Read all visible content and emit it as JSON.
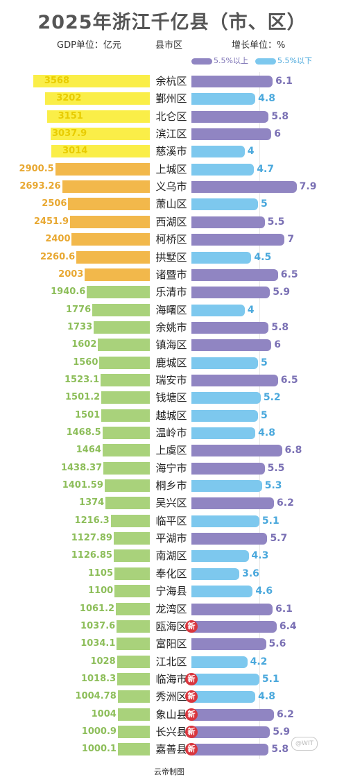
{
  "header": {
    "title": "2025年浙江千亿县（市、区）",
    "gdp_unit": "GDP单位：亿元",
    "region_label": "县市区",
    "growth_unit": "增长单位：%"
  },
  "legend": {
    "above": "5.5%以上",
    "below": "5.5%以下"
  },
  "colors": {
    "gdp_yellow": "#FAEE48",
    "gdp_orange": "#F2B84B",
    "gdp_green": "#A9D27B",
    "growth_above": "#9085C2",
    "growth_below": "#7DC8EE",
    "gdp_text_yellow": "#E8CC00",
    "gdp_text_orange": "#E8A832",
    "gdp_text_green": "#8DBE5A"
  },
  "badge_text": "新",
  "credit": "云帝制图",
  "watermark": "@WIT",
  "chart_data": {
    "type": "bar",
    "title": "2025年浙江千亿县（市、区）",
    "xlabel": "县市区",
    "gdp_unit": "亿元",
    "growth_unit": "%",
    "series": [
      {
        "name": "GDP",
        "values": [
          3568,
          3202,
          3151,
          3037.9,
          3014,
          2900.5,
          2693.26,
          2506,
          2451.9,
          2400,
          2260.6,
          2003,
          1940.6,
          1776,
          1733,
          1602,
          1560,
          1523.1,
          1501.2,
          1501,
          1468.5,
          1464,
          1438.37,
          1401.59,
          1374,
          1216.3,
          1127.89,
          1126.85,
          1105,
          1100,
          1061.2,
          1037.6,
          1034.1,
          1028,
          1018.3,
          1004.78,
          1004,
          1000.9,
          1000.1
        ]
      },
      {
        "name": "增长",
        "values": [
          6.1,
          4.8,
          5.8,
          6,
          4,
          4.7,
          7.9,
          5,
          5.5,
          7,
          4.5,
          6.5,
          5.9,
          4,
          5.8,
          6,
          5,
          6.5,
          5.2,
          5,
          4.8,
          6.8,
          5.5,
          5.3,
          6.2,
          5.1,
          5.7,
          4.3,
          3.6,
          4.6,
          6.1,
          6.4,
          5.6,
          4.2,
          5.1,
          4.8,
          6.2,
          5.9,
          5.8
        ]
      }
    ],
    "rows": [
      {
        "name": "余杭区",
        "gdp": "3568",
        "growth": "6.1",
        "tier": "yellow",
        "above": true,
        "new": false
      },
      {
        "name": "鄞州区",
        "gdp": "3202",
        "growth": "4.8",
        "tier": "yellow",
        "above": false,
        "new": false
      },
      {
        "name": "北仑区",
        "gdp": "3151",
        "growth": "5.8",
        "tier": "yellow",
        "above": true,
        "new": false
      },
      {
        "name": "滨江区",
        "gdp": "3037.9",
        "growth": "6",
        "tier": "yellow",
        "above": true,
        "new": false
      },
      {
        "name": "慈溪市",
        "gdp": "3014",
        "growth": "4",
        "tier": "yellow",
        "above": false,
        "new": false
      },
      {
        "name": "上城区",
        "gdp": "2900.5",
        "growth": "4.7",
        "tier": "orange",
        "above": false,
        "new": false
      },
      {
        "name": "义乌市",
        "gdp": "2693.26",
        "growth": "7.9",
        "tier": "orange",
        "above": true,
        "new": false
      },
      {
        "name": "萧山区",
        "gdp": "2506",
        "growth": "5",
        "tier": "orange",
        "above": false,
        "new": false
      },
      {
        "name": "西湖区",
        "gdp": "2451.9",
        "growth": "5.5",
        "tier": "orange",
        "above": true,
        "new": false
      },
      {
        "name": "柯桥区",
        "gdp": "2400",
        "growth": "7",
        "tier": "orange",
        "above": true,
        "new": false
      },
      {
        "name": "拱墅区",
        "gdp": "2260.6",
        "growth": "4.5",
        "tier": "orange",
        "above": false,
        "new": false
      },
      {
        "name": "诸暨市",
        "gdp": "2003",
        "growth": "6.5",
        "tier": "orange",
        "above": true,
        "new": false
      },
      {
        "name": "乐清市",
        "gdp": "1940.6",
        "growth": "5.9",
        "tier": "green",
        "above": true,
        "new": false
      },
      {
        "name": "海曙区",
        "gdp": "1776",
        "growth": "4",
        "tier": "green",
        "above": false,
        "new": false
      },
      {
        "name": "余姚市",
        "gdp": "1733",
        "growth": "5.8",
        "tier": "green",
        "above": true,
        "new": false
      },
      {
        "name": "镇海区",
        "gdp": "1602",
        "growth": "6",
        "tier": "green",
        "above": true,
        "new": false
      },
      {
        "name": "鹿城区",
        "gdp": "1560",
        "growth": "5",
        "tier": "green",
        "above": false,
        "new": false
      },
      {
        "name": "瑞安市",
        "gdp": "1523.1",
        "growth": "6.5",
        "tier": "green",
        "above": true,
        "new": false
      },
      {
        "name": "钱塘区",
        "gdp": "1501.2",
        "growth": "5.2",
        "tier": "green",
        "above": false,
        "new": false
      },
      {
        "name": "越城区",
        "gdp": "1501",
        "growth": "5",
        "tier": "green",
        "above": false,
        "new": false
      },
      {
        "name": "温岭市",
        "gdp": "1468.5",
        "growth": "4.8",
        "tier": "green",
        "above": false,
        "new": false
      },
      {
        "name": "上虞区",
        "gdp": "1464",
        "growth": "6.8",
        "tier": "green",
        "above": true,
        "new": false
      },
      {
        "name": "海宁市",
        "gdp": "1438.37",
        "growth": "5.5",
        "tier": "green",
        "above": true,
        "new": false
      },
      {
        "name": "桐乡市",
        "gdp": "1401.59",
        "growth": "5.3",
        "tier": "green",
        "above": false,
        "new": false
      },
      {
        "name": "吴兴区",
        "gdp": "1374",
        "growth": "6.2",
        "tier": "green",
        "above": true,
        "new": false
      },
      {
        "name": "临平区",
        "gdp": "1216.3",
        "growth": "5.1",
        "tier": "green",
        "above": false,
        "new": false
      },
      {
        "name": "平湖市",
        "gdp": "1127.89",
        "growth": "5.7",
        "tier": "green",
        "above": true,
        "new": false
      },
      {
        "name": "南湖区",
        "gdp": "1126.85",
        "growth": "4.3",
        "tier": "green",
        "above": false,
        "new": false
      },
      {
        "name": "奉化区",
        "gdp": "1105",
        "growth": "3.6",
        "tier": "green",
        "above": false,
        "new": false
      },
      {
        "name": "宁海县",
        "gdp": "1100",
        "growth": "4.6",
        "tier": "green",
        "above": false,
        "new": false
      },
      {
        "name": "龙湾区",
        "gdp": "1061.2",
        "growth": "6.1",
        "tier": "green",
        "above": true,
        "new": false
      },
      {
        "name": "瓯海区",
        "gdp": "1037.6",
        "growth": "6.4",
        "tier": "green",
        "above": true,
        "new": true
      },
      {
        "name": "富阳区",
        "gdp": "1034.1",
        "growth": "5.6",
        "tier": "green",
        "above": true,
        "new": false
      },
      {
        "name": "江北区",
        "gdp": "1028",
        "growth": "4.2",
        "tier": "green",
        "above": false,
        "new": false
      },
      {
        "name": "临海市",
        "gdp": "1018.3",
        "growth": "5.1",
        "tier": "green",
        "above": false,
        "new": true
      },
      {
        "name": "秀洲区",
        "gdp": "1004.78",
        "growth": "4.8",
        "tier": "green",
        "above": false,
        "new": true
      },
      {
        "name": "象山县",
        "gdp": "1004",
        "growth": "6.2",
        "tier": "green",
        "above": true,
        "new": true
      },
      {
        "name": "长兴县",
        "gdp": "1000.9",
        "growth": "5.9",
        "tier": "green",
        "above": true,
        "new": true
      },
      {
        "name": "嘉善县",
        "gdp": "1000.1",
        "growth": "5.8",
        "tier": "green",
        "above": true,
        "new": true
      }
    ]
  }
}
